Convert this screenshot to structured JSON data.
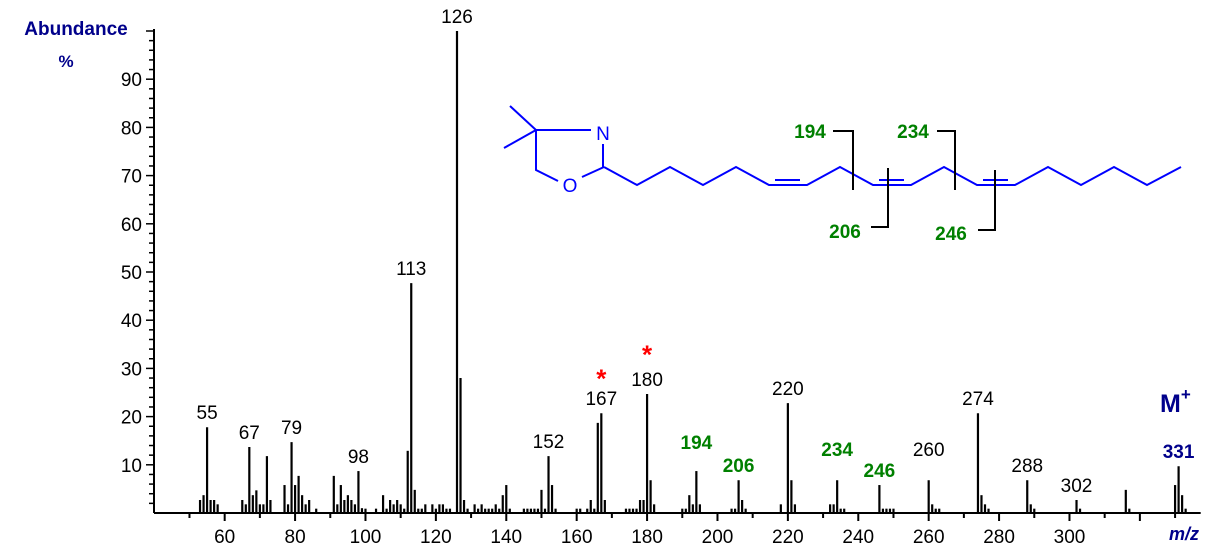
{
  "chart_data": {
    "type": "bar",
    "subtype": "mass-spectrum",
    "title": "",
    "ylabel": "Abundance",
    "ylabel_unit": "%",
    "xlabel": "m/z",
    "xlim": [
      40,
      335
    ],
    "ylim": [
      0,
      100
    ],
    "yticks": [
      10,
      20,
      30,
      40,
      50,
      60,
      70,
      80,
      90
    ],
    "xticks": [
      60,
      80,
      100,
      120,
      140,
      160,
      180,
      200,
      220,
      240,
      260,
      280,
      300
    ],
    "grid": false,
    "peaks": [
      {
        "mz": 53,
        "ab": 2.7
      },
      {
        "mz": 54,
        "ab": 3.7
      },
      {
        "mz": 55,
        "ab": 17.8
      },
      {
        "mz": 56,
        "ab": 2.7
      },
      {
        "mz": 57,
        "ab": 2.7
      },
      {
        "mz": 58,
        "ab": 1.8
      },
      {
        "mz": 65,
        "ab": 2.7
      },
      {
        "mz": 66,
        "ab": 1.8
      },
      {
        "mz": 67,
        "ab": 13.7
      },
      {
        "mz": 68,
        "ab": 3.7
      },
      {
        "mz": 69,
        "ab": 4.7
      },
      {
        "mz": 70,
        "ab": 1.8
      },
      {
        "mz": 71,
        "ab": 1.8
      },
      {
        "mz": 72,
        "ab": 11.8
      },
      {
        "mz": 73,
        "ab": 2.7
      },
      {
        "mz": 77,
        "ab": 5.8
      },
      {
        "mz": 78,
        "ab": 1.8
      },
      {
        "mz": 79,
        "ab": 14.7
      },
      {
        "mz": 80,
        "ab": 5.8
      },
      {
        "mz": 81,
        "ab": 7.7
      },
      {
        "mz": 82,
        "ab": 3.7
      },
      {
        "mz": 83,
        "ab": 1.8
      },
      {
        "mz": 84,
        "ab": 2.7
      },
      {
        "mz": 86,
        "ab": 0.9
      },
      {
        "mz": 91,
        "ab": 7.7
      },
      {
        "mz": 92,
        "ab": 1.8
      },
      {
        "mz": 93,
        "ab": 5.8
      },
      {
        "mz": 94,
        "ab": 2.7
      },
      {
        "mz": 95,
        "ab": 3.7
      },
      {
        "mz": 96,
        "ab": 2.7
      },
      {
        "mz": 97,
        "ab": 1.8
      },
      {
        "mz": 98,
        "ab": 8.7
      },
      {
        "mz": 99,
        "ab": 1.0
      },
      {
        "mz": 100,
        "ab": 0.9
      },
      {
        "mz": 103,
        "ab": 0.9
      },
      {
        "mz": 105,
        "ab": 3.7
      },
      {
        "mz": 106,
        "ab": 0.9
      },
      {
        "mz": 107,
        "ab": 2.7
      },
      {
        "mz": 108,
        "ab": 1.8
      },
      {
        "mz": 109,
        "ab": 2.7
      },
      {
        "mz": 110,
        "ab": 1.8
      },
      {
        "mz": 111,
        "ab": 0.9
      },
      {
        "mz": 112,
        "ab": 12.9
      },
      {
        "mz": 113,
        "ab": 47.7
      },
      {
        "mz": 114,
        "ab": 4.8
      },
      {
        "mz": 115,
        "ab": 0.9
      },
      {
        "mz": 116,
        "ab": 0.9
      },
      {
        "mz": 117,
        "ab": 1.8
      },
      {
        "mz": 119,
        "ab": 1.8
      },
      {
        "mz": 120,
        "ab": 0.9
      },
      {
        "mz": 121,
        "ab": 1.8
      },
      {
        "mz": 122,
        "ab": 1.8
      },
      {
        "mz": 123,
        "ab": 0.9
      },
      {
        "mz": 124,
        "ab": 0.9
      },
      {
        "mz": 126,
        "ab": 100
      },
      {
        "mz": 127,
        "ab": 28
      },
      {
        "mz": 128,
        "ab": 2.7
      },
      {
        "mz": 129,
        "ab": 0.9
      },
      {
        "mz": 131,
        "ab": 1.8
      },
      {
        "mz": 132,
        "ab": 0.9
      },
      {
        "mz": 133,
        "ab": 1.8
      },
      {
        "mz": 134,
        "ab": 0.9
      },
      {
        "mz": 135,
        "ab": 0.9
      },
      {
        "mz": 136,
        "ab": 0.9
      },
      {
        "mz": 137,
        "ab": 1.8
      },
      {
        "mz": 138,
        "ab": 0.9
      },
      {
        "mz": 139,
        "ab": 3.7
      },
      {
        "mz": 140,
        "ab": 5.8
      },
      {
        "mz": 141,
        "ab": 0.9
      },
      {
        "mz": 145,
        "ab": 0.9
      },
      {
        "mz": 146,
        "ab": 0.9
      },
      {
        "mz": 147,
        "ab": 0.9
      },
      {
        "mz": 148,
        "ab": 0.9
      },
      {
        "mz": 149,
        "ab": 0.9
      },
      {
        "mz": 150,
        "ab": 4.8
      },
      {
        "mz": 151,
        "ab": 0.9
      },
      {
        "mz": 152,
        "ab": 11.8
      },
      {
        "mz": 153,
        "ab": 5.8
      },
      {
        "mz": 154,
        "ab": 0.9
      },
      {
        "mz": 160,
        "ab": 0.9
      },
      {
        "mz": 161,
        "ab": 0.9
      },
      {
        "mz": 163,
        "ab": 0.9
      },
      {
        "mz": 164,
        "ab": 2.7
      },
      {
        "mz": 165,
        "ab": 0.9
      },
      {
        "mz": 166,
        "ab": 18.7
      },
      {
        "mz": 167,
        "ab": 20.7
      },
      {
        "mz": 168,
        "ab": 2.7
      },
      {
        "mz": 174,
        "ab": 0.9
      },
      {
        "mz": 175,
        "ab": 0.9
      },
      {
        "mz": 176,
        "ab": 0.9
      },
      {
        "mz": 177,
        "ab": 0.9
      },
      {
        "mz": 178,
        "ab": 2.7
      },
      {
        "mz": 179,
        "ab": 2.7
      },
      {
        "mz": 180,
        "ab": 24.7
      },
      {
        "mz": 181,
        "ab": 6.8
      },
      {
        "mz": 182,
        "ab": 1.8
      },
      {
        "mz": 190,
        "ab": 0.9
      },
      {
        "mz": 191,
        "ab": 0.9
      },
      {
        "mz": 192,
        "ab": 3.7
      },
      {
        "mz": 193,
        "ab": 1.8
      },
      {
        "mz": 194,
        "ab": 8.7
      },
      {
        "mz": 195,
        "ab": 1.8
      },
      {
        "mz": 204,
        "ab": 0.9
      },
      {
        "mz": 205,
        "ab": 0.9
      },
      {
        "mz": 206,
        "ab": 6.8
      },
      {
        "mz": 207,
        "ab": 2.7
      },
      {
        "mz": 208,
        "ab": 0.9
      },
      {
        "mz": 218,
        "ab": 1.8
      },
      {
        "mz": 220,
        "ab": 22.8
      },
      {
        "mz": 221,
        "ab": 6.8
      },
      {
        "mz": 222,
        "ab": 1.8
      },
      {
        "mz": 232,
        "ab": 1.8
      },
      {
        "mz": 233,
        "ab": 1.8
      },
      {
        "mz": 234,
        "ab": 6.8
      },
      {
        "mz": 235,
        "ab": 0.9
      },
      {
        "mz": 236,
        "ab": 0.9
      },
      {
        "mz": 246,
        "ab": 5.8
      },
      {
        "mz": 247,
        "ab": 0.9
      },
      {
        "mz": 248,
        "ab": 0.9
      },
      {
        "mz": 249,
        "ab": 0.9
      },
      {
        "mz": 250,
        "ab": 0.9
      },
      {
        "mz": 260,
        "ab": 6.8
      },
      {
        "mz": 261,
        "ab": 1.8
      },
      {
        "mz": 262,
        "ab": 0.9
      },
      {
        "mz": 263,
        "ab": 0.9
      },
      {
        "mz": 274,
        "ab": 20.7
      },
      {
        "mz": 275,
        "ab": 3.7
      },
      {
        "mz": 276,
        "ab": 1.8
      },
      {
        "mz": 277,
        "ab": 0.9
      },
      {
        "mz": 288,
        "ab": 6.8
      },
      {
        "mz": 289,
        "ab": 1.8
      },
      {
        "mz": 290,
        "ab": 0.9
      },
      {
        "mz": 302,
        "ab": 2.7
      },
      {
        "mz": 303,
        "ab": 0.9
      },
      {
        "mz": 316,
        "ab": 4.8
      },
      {
        "mz": 317,
        "ab": 0.9
      },
      {
        "mz": 330,
        "ab": 5.8
      },
      {
        "mz": 331,
        "ab": 9.7
      },
      {
        "mz": 332,
        "ab": 3.7
      },
      {
        "mz": 333,
        "ab": 0.9
      }
    ],
    "peak_labels": [
      {
        "mz": 55,
        "text": "55",
        "color": "#000000",
        "bold": false,
        "ab": 17.8
      },
      {
        "mz": 67,
        "text": "67",
        "color": "#000000",
        "bold": false,
        "ab": 13.7
      },
      {
        "mz": 79,
        "text": "79",
        "color": "#000000",
        "bold": false,
        "ab": 14.7
      },
      {
        "mz": 98,
        "text": "98",
        "color": "#000000",
        "bold": false,
        "ab": 8.7
      },
      {
        "mz": 113,
        "text": "113",
        "color": "#000000",
        "bold": false,
        "ab": 47.7
      },
      {
        "mz": 126,
        "text": "126",
        "color": "#000000",
        "bold": false,
        "ab": 100
      },
      {
        "mz": 152,
        "text": "152",
        "color": "#000000",
        "bold": false,
        "ab": 11.8
      },
      {
        "mz": 167,
        "text": "167",
        "color": "#000000",
        "bold": false,
        "ab": 20.7
      },
      {
        "mz": 180,
        "text": "180",
        "color": "#000000",
        "bold": false,
        "ab": 24.7
      },
      {
        "mz": 194,
        "text": "194",
        "color": "#008000",
        "bold": true,
        "ab": 8.7,
        "dy": 14
      },
      {
        "mz": 206,
        "text": "206",
        "color": "#008000",
        "bold": true,
        "ab": 6.8
      },
      {
        "mz": 220,
        "text": "220",
        "color": "#000000",
        "bold": false,
        "ab": 22.8
      },
      {
        "mz": 234,
        "text": "234",
        "color": "#008000",
        "bold": true,
        "ab": 6.8,
        "dy": 16
      },
      {
        "mz": 246,
        "text": "246",
        "color": "#008000",
        "bold": true,
        "ab": 5.8
      },
      {
        "mz": 260,
        "text": "260",
        "color": "#000000",
        "bold": false,
        "ab": 6.8,
        "dy": 16
      },
      {
        "mz": 274,
        "text": "274",
        "color": "#000000",
        "bold": false,
        "ab": 20.7
      },
      {
        "mz": 288,
        "text": "288",
        "color": "#000000",
        "bold": false,
        "ab": 6.8
      },
      {
        "mz": 302,
        "text": "302",
        "color": "#000000",
        "bold": false,
        "ab": 2.7
      },
      {
        "mz": 331,
        "text": "331",
        "color": "#00008B",
        "bold": true,
        "ab": 9.7
      }
    ],
    "annotations": [
      {
        "text": "*",
        "mz": 167,
        "ab": 28.5,
        "color": "#FF0000",
        "note": "asterisk above 167"
      },
      {
        "text": "*",
        "mz": 180,
        "ab": 33.5,
        "color": "#FF0000",
        "note": "asterisk above 180"
      },
      {
        "text": "M+",
        "position": "right",
        "color": "#00008B"
      }
    ],
    "structure": {
      "name": "4,4-dimethyloxazoline derivative of a trienoic acid",
      "atoms": [
        "N",
        "O"
      ],
      "fragment_labels": [
        "194",
        "206",
        "234",
        "246"
      ],
      "bond_color": "#0000FF"
    }
  },
  "labels": {
    "y_title": "Abundance",
    "y_unit": "%",
    "x_title": "m/z",
    "molecular_ion": "M",
    "molecular_ion_sup": "+",
    "atom_n": "N",
    "atom_o": "O",
    "frag_194": "194",
    "frag_206": "206",
    "frag_234": "234",
    "frag_246": "246"
  },
  "colors": {
    "axis": "#000000",
    "peak": "#000000",
    "axis_title": "#00008B",
    "tick_label": "#000000",
    "fragment": "#008000",
    "asterisk": "#FF0000",
    "structure": "#0000FF"
  }
}
